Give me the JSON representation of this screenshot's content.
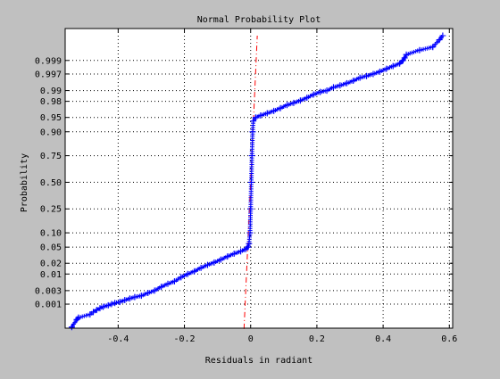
{
  "figure": {
    "background": "#c0c0c0",
    "axes_background": "#ffffff",
    "data_color": "#0000ff",
    "ref_line_color": "#ff0000"
  },
  "chart_data": {
    "type": "scatter",
    "title": "Normal Probability Plot",
    "xlabel": "Residuals in radiant",
    "ylabel": "Probability",
    "xlim": [
      -0.56,
      0.61
    ],
    "z_range": [
      -3.7,
      3.9
    ],
    "grid": true,
    "legend": "none",
    "x_ticks": [
      -0.4,
      -0.2,
      0,
      0.2,
      0.4,
      0.6
    ],
    "x_tick_labels": [
      "-0.4",
      "-0.2",
      "0",
      "0.2",
      "0.4",
      "0.6"
    ],
    "y_ticks": [
      0.001,
      0.003,
      0.01,
      0.02,
      0.05,
      0.1,
      0.25,
      0.5,
      0.75,
      0.9,
      0.95,
      0.98,
      0.99,
      0.997,
      0.999
    ],
    "y_tick_labels": [
      "0.001",
      "0.003",
      "0.01",
      "0.02",
      "0.05",
      "0.10",
      "0.25",
      "0.50",
      "0.75",
      "0.90",
      "0.95",
      "0.98",
      "0.99",
      "0.997",
      "0.999"
    ],
    "reference_line": {
      "style": "dash-dot",
      "points": [
        [
          -0.02,
          0.0001
        ],
        [
          0.02,
          0.9999
        ]
      ]
    },
    "series": [
      {
        "marker": "+",
        "points": [
          [
            -0.54,
            0.00012
          ],
          [
            -0.525,
            0.00025
          ],
          [
            -0.52,
            0.0003
          ],
          [
            -0.485,
            0.0004
          ],
          [
            -0.475,
            0.0005
          ],
          [
            -0.465,
            0.0006
          ],
          [
            -0.455,
            0.0007
          ],
          [
            -0.445,
            0.0008
          ],
          [
            -0.43,
            0.0009
          ],
          [
            -0.42,
            0.001
          ],
          [
            -0.41,
            0.0011
          ],
          [
            -0.395,
            0.0012
          ],
          [
            -0.38,
            0.0014
          ],
          [
            -0.365,
            0.0016
          ],
          [
            -0.35,
            0.0018
          ],
          [
            -0.33,
            0.002
          ],
          [
            -0.31,
            0.0025
          ],
          [
            -0.29,
            0.003
          ],
          [
            -0.27,
            0.004
          ],
          [
            -0.25,
            0.005
          ],
          [
            -0.23,
            0.006
          ],
          [
            -0.21,
            0.008
          ],
          [
            -0.19,
            0.01
          ],
          [
            -0.17,
            0.012
          ],
          [
            -0.15,
            0.015
          ],
          [
            -0.13,
            0.018
          ],
          [
            -0.11,
            0.021
          ],
          [
            -0.09,
            0.025
          ],
          [
            -0.07,
            0.03
          ],
          [
            -0.05,
            0.035
          ],
          [
            -0.03,
            0.04
          ],
          [
            -0.015,
            0.045
          ],
          [
            -0.008,
            0.05
          ],
          [
            -0.005,
            0.06
          ],
          [
            -0.002,
            0.1
          ],
          [
            0.0,
            0.25
          ],
          [
            0.002,
            0.5
          ],
          [
            0.004,
            0.75
          ],
          [
            0.006,
            0.9
          ],
          [
            0.008,
            0.94
          ],
          [
            0.015,
            0.95
          ],
          [
            0.03,
            0.955
          ],
          [
            0.05,
            0.96
          ],
          [
            0.07,
            0.965
          ],
          [
            0.09,
            0.97
          ],
          [
            0.11,
            0.975
          ],
          [
            0.13,
            0.978
          ],
          [
            0.15,
            0.981
          ],
          [
            0.17,
            0.984
          ],
          [
            0.19,
            0.987
          ],
          [
            0.21,
            0.989
          ],
          [
            0.23,
            0.99
          ],
          [
            0.25,
            0.992
          ],
          [
            0.27,
            0.993
          ],
          [
            0.29,
            0.994
          ],
          [
            0.31,
            0.995
          ],
          [
            0.33,
            0.996
          ],
          [
            0.35,
            0.9965
          ],
          [
            0.37,
            0.997
          ],
          [
            0.39,
            0.9975
          ],
          [
            0.41,
            0.998
          ],
          [
            0.43,
            0.9984
          ],
          [
            0.45,
            0.9987
          ],
          [
            0.46,
            0.999
          ],
          [
            0.465,
            0.9992
          ],
          [
            0.47,
            0.9994
          ],
          [
            0.51,
            0.9996
          ],
          [
            0.55,
            0.9997
          ],
          [
            0.57,
            0.99985
          ],
          [
            0.58,
            0.9999
          ]
        ]
      }
    ]
  }
}
